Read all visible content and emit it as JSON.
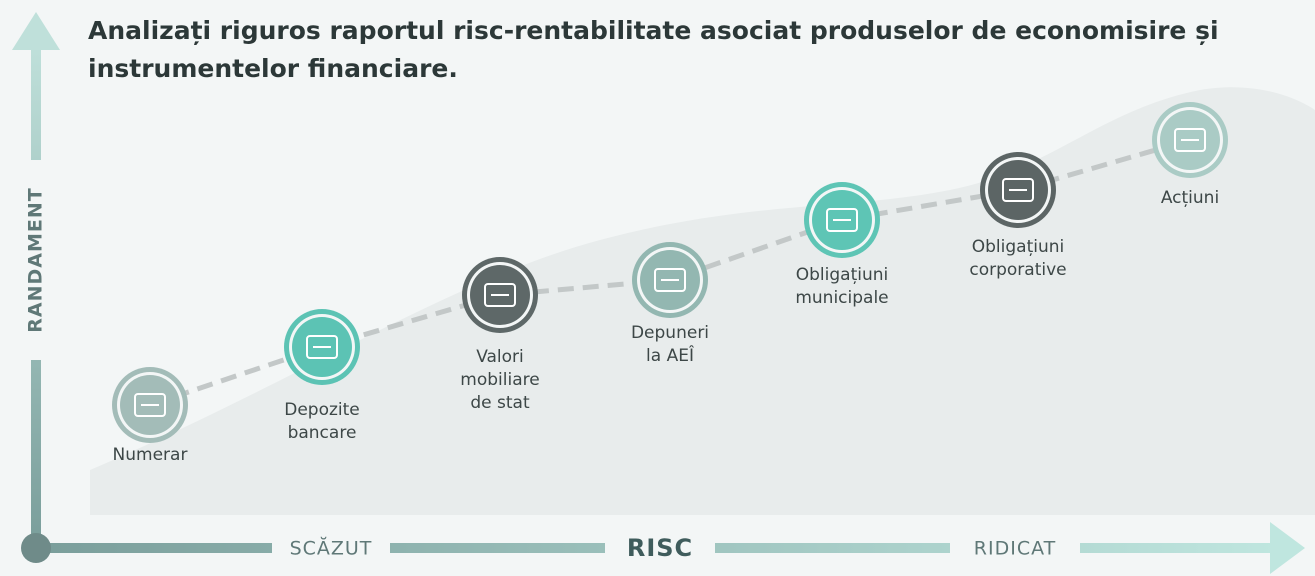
{
  "title": [
    "Analizați riguros raportul risc-rentabilitate asociat produselor de economisire și",
    "instrumentelor financiare."
  ],
  "y_axis": "RANDAMENT",
  "x_axis": {
    "low": "SCĂZUT",
    "label": "RISC",
    "high": "RIDICAT"
  },
  "nodes": [
    {
      "label": [
        "Numerar"
      ]
    },
    {
      "label": [
        "Depozite",
        "bancare"
      ]
    },
    {
      "label": [
        "Valori",
        "mobiliare",
        "de stat"
      ]
    },
    {
      "label": [
        "Depuneri",
        "la AEÎ"
      ]
    },
    {
      "label": [
        "Obligațiuni",
        "municipale"
      ]
    },
    {
      "label": [
        "Obligațiuni",
        "corporative"
      ]
    },
    {
      "label": [
        "Acțiuni"
      ]
    }
  ]
}
